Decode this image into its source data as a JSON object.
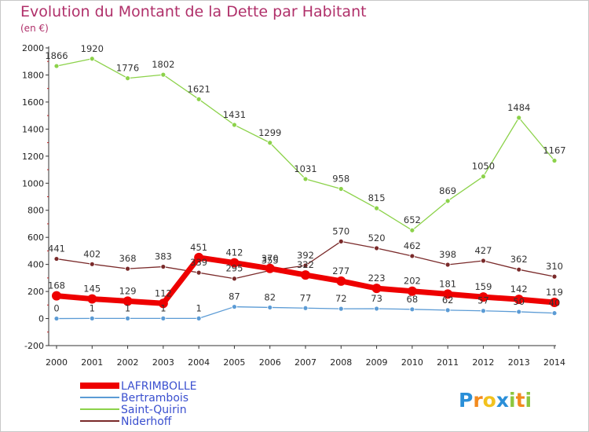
{
  "title": "Evolution du Montant de la Dette par Habitant",
  "subtitle": "(en €)",
  "brand": {
    "text": "Proxiti",
    "letters": [
      "P",
      "r",
      "o",
      "x",
      "i",
      "t",
      "i"
    ],
    "colors": [
      "#2a8fd8",
      "#f28a1e",
      "#f2c21e",
      "#2a8fd8",
      "#8cc63f",
      "#f28a1e",
      "#8cc63f"
    ]
  },
  "chart_data": {
    "type": "line",
    "x": [
      2000,
      2001,
      2002,
      2003,
      2004,
      2005,
      2006,
      2007,
      2008,
      2009,
      2010,
      2011,
      2012,
      2013,
      2014
    ],
    "ylim": [
      -200,
      2000
    ],
    "yticks": [
      -200,
      0,
      200,
      400,
      600,
      800,
      1000,
      1200,
      1400,
      1600,
      1800,
      2000
    ],
    "grid": false,
    "legend_position": "bottom-left",
    "series": [
      {
        "name": "LAFRIMBOLLE",
        "color": "#ee0000",
        "values": [
          168,
          145,
          129,
          112,
          451,
          412,
          370,
          322,
          277,
          223,
          202,
          181,
          159,
          142,
          119
        ],
        "labels": [
          "168",
          "145",
          "129",
          "112",
          "451",
          "412",
          "370",
          "322",
          "277",
          "223",
          "202",
          "181",
          "159",
          "142",
          "119"
        ]
      },
      {
        "name": "Bertrambois",
        "color": "#5b9bd5",
        "values": [
          0,
          1,
          1,
          1,
          1,
          87,
          82,
          77,
          72,
          73,
          68,
          62,
          57,
          50,
          40
        ],
        "labels": [
          "0",
          "1",
          "1",
          "1",
          "1",
          "87",
          "82",
          "77",
          "72",
          "73",
          "68",
          "62",
          "57",
          "50",
          "40"
        ]
      },
      {
        "name": "Saint-Quirin",
        "color": "#8cd24a",
        "values": [
          1866,
          1920,
          1776,
          1802,
          1621,
          1431,
          1299,
          1031,
          958,
          815,
          652,
          869,
          1050,
          1484,
          1167
        ],
        "labels": [
          "1866",
          "1920",
          "1776",
          "1802",
          "1621",
          "1431",
          "1299",
          "1031",
          "958",
          "815",
          "652",
          "869",
          "1050",
          "1484",
          "1167"
        ]
      },
      {
        "name": "Niderhoff",
        "color": "#7a2a2a",
        "values": [
          441,
          402,
          368,
          383,
          339,
          295,
          355,
          392,
          570,
          520,
          462,
          398,
          427,
          362,
          310
        ],
        "labels": [
          "441",
          "402",
          "368",
          "383",
          "339",
          "295",
          "355",
          "392",
          "570",
          "520",
          "462",
          "398",
          "427",
          "362",
          "310"
        ]
      }
    ]
  }
}
